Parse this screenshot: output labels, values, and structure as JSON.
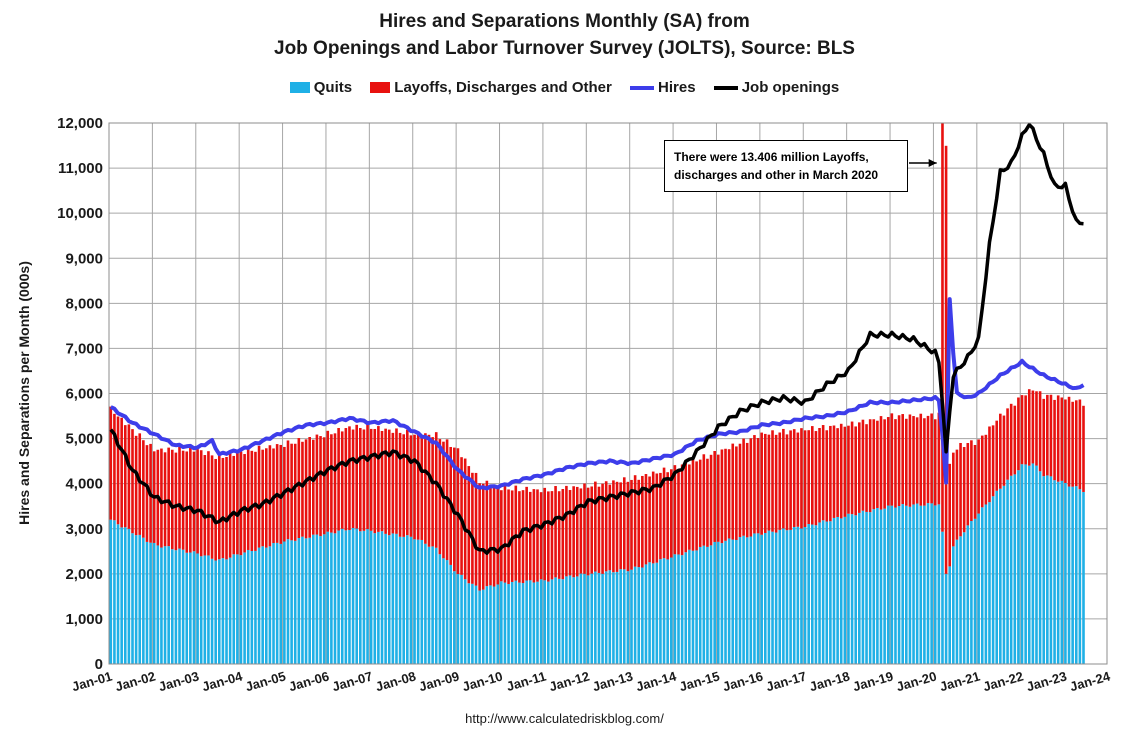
{
  "chart_data": {
    "type": "bar",
    "title_lines": [
      "Hires and Separations Monthly (SA) from",
      "Job Openings and Labor Turnover Survey (JOLTS), Source: BLS"
    ],
    "ylabel": "Hires and Separations per Month (000s)",
    "xlabel": "",
    "ylim": [
      0,
      12000
    ],
    "yticks": [
      "0",
      "1,000",
      "2,000",
      "3,000",
      "4,000",
      "5,000",
      "6,000",
      "7,000",
      "8,000",
      "9,000",
      "10,000",
      "11,000",
      "12,000"
    ],
    "xticks": [
      "Jan-01",
      "Jan-02",
      "Jan-03",
      "Jan-04",
      "Jan-05",
      "Jan-06",
      "Jan-07",
      "Jan-08",
      "Jan-09",
      "Jan-10",
      "Jan-11",
      "Jan-12",
      "Jan-13",
      "Jan-14",
      "Jan-15",
      "Jan-16",
      "Jan-17",
      "Jan-18",
      "Jan-19",
      "Jan-20",
      "Jan-21",
      "Jan-22",
      "Jan-23",
      "Jan-24"
    ],
    "grid": true,
    "legend_position": "top",
    "stacked": true,
    "series": [
      {
        "name": "Quits",
        "kind": "bar",
        "color": "#1fb0e6",
        "anchors": [
          [
            2001,
            0,
            3200
          ],
          [
            2002,
            0,
            2650
          ],
          [
            2003,
            0,
            2450
          ],
          [
            2003,
            6,
            2300
          ],
          [
            2004,
            0,
            2450
          ],
          [
            2005,
            0,
            2720
          ],
          [
            2006,
            0,
            2900
          ],
          [
            2006,
            6,
            3000
          ],
          [
            2007,
            0,
            2950
          ],
          [
            2008,
            0,
            2800
          ],
          [
            2008,
            6,
            2550
          ],
          [
            2009,
            0,
            2000
          ],
          [
            2009,
            6,
            1650
          ],
          [
            2010,
            0,
            1800
          ],
          [
            2011,
            0,
            1850
          ],
          [
            2012,
            0,
            2000
          ],
          [
            2013,
            0,
            2100
          ],
          [
            2014,
            0,
            2400
          ],
          [
            2015,
            0,
            2700
          ],
          [
            2016,
            0,
            2900
          ],
          [
            2017,
            0,
            3050
          ],
          [
            2018,
            0,
            3300
          ],
          [
            2019,
            0,
            3500
          ],
          [
            2020,
            0,
            3550
          ],
          [
            2020,
            1,
            3550
          ],
          [
            2020,
            2,
            2900
          ],
          [
            2020,
            3,
            2000
          ],
          [
            2020,
            4,
            2200
          ],
          [
            2020,
            5,
            2600
          ],
          [
            2020,
            7,
            2850
          ],
          [
            2021,
            0,
            3350
          ],
          [
            2021,
            6,
            3900
          ],
          [
            2022,
            0,
            4400
          ],
          [
            2022,
            3,
            4450
          ],
          [
            2022,
            6,
            4200
          ],
          [
            2023,
            0,
            4000
          ],
          [
            2023,
            5,
            3850
          ]
        ]
      },
      {
        "name": "Layoffs, Discharges and Other",
        "kind": "bar",
        "color": "#e8110f",
        "anchors": [
          [
            2001,
            0,
            2450
          ],
          [
            2002,
            0,
            2100
          ],
          [
            2003,
            0,
            2300
          ],
          [
            2004,
            0,
            2250
          ],
          [
            2005,
            0,
            2150
          ],
          [
            2006,
            0,
            2200
          ],
          [
            2007,
            0,
            2300
          ],
          [
            2008,
            0,
            2300
          ],
          [
            2009,
            0,
            2750
          ],
          [
            2009,
            6,
            2400
          ],
          [
            2010,
            0,
            2100
          ],
          [
            2011,
            0,
            2000
          ],
          [
            2012,
            0,
            1950
          ],
          [
            2013,
            0,
            2000
          ],
          [
            2014,
            0,
            1950
          ],
          [
            2015,
            0,
            2000
          ],
          [
            2016,
            0,
            2200
          ],
          [
            2017,
            0,
            2150
          ],
          [
            2018,
            0,
            2000
          ],
          [
            2019,
            0,
            2000
          ],
          [
            2020,
            0,
            1950
          ],
          [
            2020,
            1,
            2000
          ],
          [
            2020,
            2,
            13406
          ],
          [
            2020,
            3,
            9550
          ],
          [
            2020,
            4,
            2200
          ],
          [
            2020,
            5,
            2100
          ],
          [
            2020,
            7,
            2000
          ],
          [
            2021,
            0,
            1600
          ],
          [
            2021,
            6,
            1600
          ],
          [
            2022,
            0,
            1550
          ],
          [
            2022,
            6,
            1750
          ],
          [
            2023,
            0,
            1900
          ],
          [
            2023,
            5,
            1950
          ]
        ]
      },
      {
        "name": "Hires",
        "kind": "line",
        "color": "#3d3dea",
        "anchors": [
          [
            2001,
            0,
            5700
          ],
          [
            2001,
            6,
            5350
          ],
          [
            2002,
            0,
            5100
          ],
          [
            2002,
            6,
            4850
          ],
          [
            2003,
            0,
            4800
          ],
          [
            2003,
            4,
            4950
          ],
          [
            2003,
            6,
            4650
          ],
          [
            2004,
            0,
            4750
          ],
          [
            2004,
            6,
            4950
          ],
          [
            2005,
            0,
            5150
          ],
          [
            2005,
            6,
            5300
          ],
          [
            2006,
            0,
            5350
          ],
          [
            2006,
            6,
            5450
          ],
          [
            2007,
            0,
            5350
          ],
          [
            2007,
            6,
            5400
          ],
          [
            2008,
            0,
            5150
          ],
          [
            2008,
            6,
            4900
          ],
          [
            2009,
            0,
            4300
          ],
          [
            2009,
            6,
            3900
          ],
          [
            2010,
            0,
            3950
          ],
          [
            2010,
            6,
            4100
          ],
          [
            2011,
            0,
            4200
          ],
          [
            2011,
            6,
            4350
          ],
          [
            2012,
            0,
            4450
          ],
          [
            2012,
            6,
            4500
          ],
          [
            2013,
            0,
            4450
          ],
          [
            2013,
            6,
            4550
          ],
          [
            2014,
            0,
            4650
          ],
          [
            2014,
            6,
            4950
          ],
          [
            2015,
            0,
            5100
          ],
          [
            2015,
            6,
            5150
          ],
          [
            2016,
            0,
            5300
          ],
          [
            2016,
            6,
            5350
          ],
          [
            2017,
            0,
            5450
          ],
          [
            2017,
            6,
            5500
          ],
          [
            2018,
            0,
            5600
          ],
          [
            2018,
            6,
            5800
          ],
          [
            2019,
            0,
            5800
          ],
          [
            2019,
            6,
            5850
          ],
          [
            2020,
            0,
            5900
          ],
          [
            2020,
            1,
            5850
          ],
          [
            2020,
            2,
            5100
          ],
          [
            2020,
            3,
            4000
          ],
          [
            2020,
            4,
            8100
          ],
          [
            2020,
            5,
            6900
          ],
          [
            2020,
            6,
            6000
          ],
          [
            2020,
            9,
            5900
          ],
          [
            2021,
            0,
            6000
          ],
          [
            2021,
            6,
            6400
          ],
          [
            2022,
            0,
            6700
          ],
          [
            2022,
            6,
            6400
          ],
          [
            2023,
            0,
            6200
          ],
          [
            2023,
            3,
            6100
          ],
          [
            2023,
            5,
            6200
          ]
        ]
      },
      {
        "name": "Job openings",
        "kind": "line",
        "color": "#000000",
        "anchors": [
          [
            2001,
            0,
            5200
          ],
          [
            2001,
            6,
            4300
          ],
          [
            2002,
            0,
            3700
          ],
          [
            2002,
            6,
            3500
          ],
          [
            2003,
            0,
            3400
          ],
          [
            2003,
            6,
            3150
          ],
          [
            2004,
            0,
            3400
          ],
          [
            2004,
            6,
            3550
          ],
          [
            2005,
            0,
            3800
          ],
          [
            2005,
            6,
            4050
          ],
          [
            2006,
            0,
            4300
          ],
          [
            2006,
            6,
            4500
          ],
          [
            2007,
            0,
            4600
          ],
          [
            2007,
            6,
            4700
          ],
          [
            2008,
            0,
            4500
          ],
          [
            2008,
            6,
            4000
          ],
          [
            2009,
            0,
            3300
          ],
          [
            2009,
            6,
            2500
          ],
          [
            2010,
            0,
            2550
          ],
          [
            2010,
            6,
            2950
          ],
          [
            2011,
            0,
            3100
          ],
          [
            2011,
            6,
            3300
          ],
          [
            2012,
            0,
            3600
          ],
          [
            2012,
            6,
            3700
          ],
          [
            2013,
            0,
            3800
          ],
          [
            2013,
            6,
            3900
          ],
          [
            2014,
            0,
            4200
          ],
          [
            2014,
            6,
            4700
          ],
          [
            2015,
            0,
            5250
          ],
          [
            2015,
            6,
            5600
          ],
          [
            2016,
            0,
            5800
          ],
          [
            2016,
            6,
            5900
          ],
          [
            2017,
            0,
            5800
          ],
          [
            2017,
            6,
            6200
          ],
          [
            2018,
            0,
            6500
          ],
          [
            2018,
            6,
            7300
          ],
          [
            2019,
            0,
            7300
          ],
          [
            2019,
            6,
            7200
          ],
          [
            2020,
            0,
            6900
          ],
          [
            2020,
            1,
            6700
          ],
          [
            2020,
            2,
            5800
          ],
          [
            2020,
            3,
            4650
          ],
          [
            2020,
            4,
            5600
          ],
          [
            2020,
            5,
            6400
          ],
          [
            2020,
            9,
            6800
          ],
          [
            2021,
            0,
            7200
          ],
          [
            2021,
            3,
            9300
          ],
          [
            2021,
            6,
            10900
          ],
          [
            2021,
            9,
            11100
          ],
          [
            2022,
            0,
            11700
          ],
          [
            2022,
            2,
            12000
          ],
          [
            2022,
            6,
            11300
          ],
          [
            2022,
            9,
            10600
          ],
          [
            2023,
            0,
            10600
          ],
          [
            2023,
            3,
            9800
          ],
          [
            2023,
            5,
            9800
          ]
        ]
      }
    ],
    "annotations": [
      "There were 13.406 million Layoffs,",
      "discharges and other in March 2020"
    ],
    "source": "http://www.calculatedriskblog.com/"
  }
}
